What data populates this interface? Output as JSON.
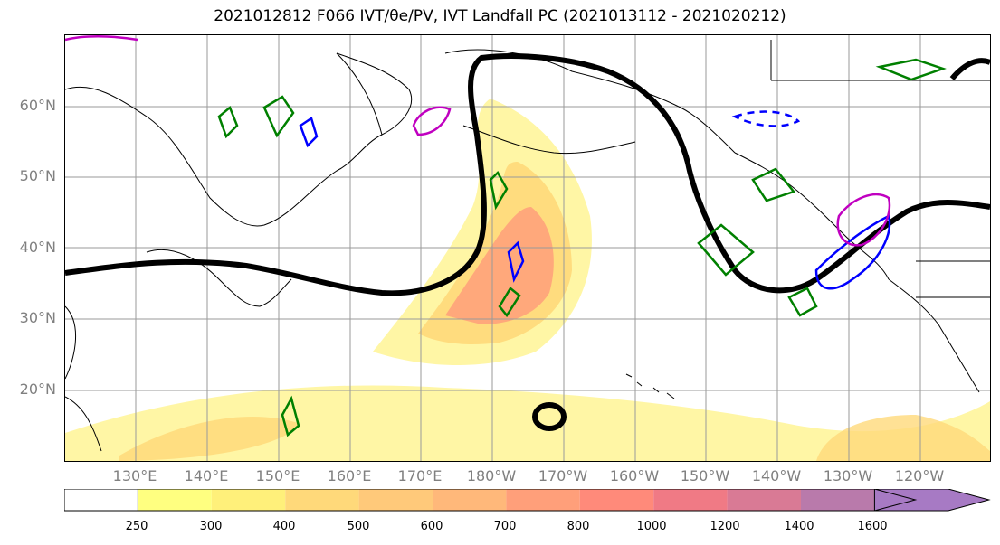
{
  "title": "2021012812 F066 IVT/θe/PV, IVT Landfall PC (2021013112 - 2021020212)",
  "map": {
    "lat_labels": [
      "60°N",
      "50°N",
      "40°N",
      "30°N",
      "20°N"
    ],
    "lon_labels": [
      "130°E",
      "140°E",
      "150°E",
      "160°E",
      "170°E",
      "180°W",
      "170°W",
      "160°W",
      "150°W",
      "140°W",
      "130°W",
      "120°W"
    ]
  },
  "colorbar": {
    "levels": [
      "250",
      "300",
      "400",
      "500",
      "600",
      "700",
      "800",
      "1000",
      "1200",
      "1400",
      "1600"
    ],
    "colors": [
      "#ffffff",
      "#ffff80",
      "#fff07a",
      "#ffd97a",
      "#ffc97a",
      "#ffb87a",
      "#ff9f7a",
      "#ff8a7a",
      "#f07a85",
      "#d97a95",
      "#b97aab",
      "#a77ac4"
    ]
  },
  "contour_colors": {
    "ivt_landfall": "#000000",
    "theta_e": "#008000",
    "pv_negative": "#0000ff",
    "pv_positive": "#c000c0"
  }
}
